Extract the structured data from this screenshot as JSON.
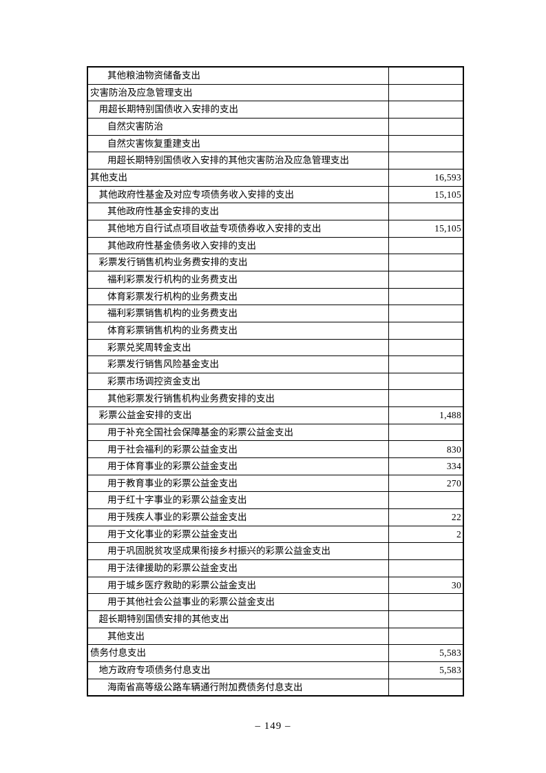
{
  "page": {
    "number_label": "– 149 –",
    "background_color": "#ffffff",
    "text_color": "#000000",
    "border_color": "#000000"
  },
  "table": {
    "rows": [
      {
        "label": "其他粮油物资储备支出",
        "indent": 2,
        "value": ""
      },
      {
        "label": "灾害防治及应急管理支出",
        "indent": 0,
        "value": ""
      },
      {
        "label": "用超长期特别国债收入安排的支出",
        "indent": 1,
        "value": ""
      },
      {
        "label": "自然灾害防治",
        "indent": 2,
        "value": ""
      },
      {
        "label": "自然灾害恢复重建支出",
        "indent": 2,
        "value": ""
      },
      {
        "label": "用超长期特别国债收入安排的其他灾害防治及应急管理支出",
        "indent": 2,
        "value": ""
      },
      {
        "label": "其他支出",
        "indent": 0,
        "value": "16,593"
      },
      {
        "label": "其他政府性基金及对应专项债务收入安排的支出",
        "indent": 1,
        "value": "15,105"
      },
      {
        "label": "其他政府性基金安排的支出",
        "indent": 2,
        "value": ""
      },
      {
        "label": "其他地方自行试点项目收益专项债券收入安排的支出",
        "indent": 2,
        "value": "15,105"
      },
      {
        "label": "其他政府性基金债务收入安排的支出",
        "indent": 2,
        "value": ""
      },
      {
        "label": "彩票发行销售机构业务费安排的支出",
        "indent": 1,
        "value": ""
      },
      {
        "label": "福利彩票发行机构的业务费支出",
        "indent": 2,
        "value": ""
      },
      {
        "label": "体育彩票发行机构的业务费支出",
        "indent": 2,
        "value": ""
      },
      {
        "label": "福利彩票销售机构的业务费支出",
        "indent": 2,
        "value": ""
      },
      {
        "label": "体育彩票销售机构的业务费支出",
        "indent": 2,
        "value": ""
      },
      {
        "label": "彩票兑奖周转金支出",
        "indent": 2,
        "value": ""
      },
      {
        "label": "彩票发行销售风险基金支出",
        "indent": 2,
        "value": ""
      },
      {
        "label": "彩票市场调控资金支出",
        "indent": 2,
        "value": ""
      },
      {
        "label": "其他彩票发行销售机构业务费安排的支出",
        "indent": 2,
        "value": ""
      },
      {
        "label": "彩票公益金安排的支出",
        "indent": 1,
        "value": "1,488"
      },
      {
        "label": "用于补充全国社会保障基金的彩票公益金支出",
        "indent": 2,
        "value": ""
      },
      {
        "label": "用于社会福利的彩票公益金支出",
        "indent": 2,
        "value": "830"
      },
      {
        "label": "用于体育事业的彩票公益金支出",
        "indent": 2,
        "value": "334"
      },
      {
        "label": "用于教育事业的彩票公益金支出",
        "indent": 2,
        "value": "270"
      },
      {
        "label": "用于红十字事业的彩票公益金支出",
        "indent": 2,
        "value": ""
      },
      {
        "label": "用于残疾人事业的彩票公益金支出",
        "indent": 2,
        "value": "22"
      },
      {
        "label": "用于文化事业的彩票公益金支出",
        "indent": 2,
        "value": "2"
      },
      {
        "label": "用于巩固脱贫攻坚成果衔接乡村振兴的彩票公益金支出",
        "indent": 2,
        "value": ""
      },
      {
        "label": "用于法律援助的彩票公益金支出",
        "indent": 2,
        "value": ""
      },
      {
        "label": "用于城乡医疗救助的彩票公益金支出",
        "indent": 2,
        "value": "30"
      },
      {
        "label": "用于其他社会公益事业的彩票公益金支出",
        "indent": 2,
        "value": ""
      },
      {
        "label": "超长期特别国债安排的其他支出",
        "indent": 1,
        "value": ""
      },
      {
        "label": "其他支出",
        "indent": 2,
        "value": ""
      },
      {
        "label": "债务付息支出",
        "indent": 0,
        "value": "5,583"
      },
      {
        "label": "地方政府专项债务付息支出",
        "indent": 1,
        "value": "5,583"
      },
      {
        "label": "海南省高等级公路车辆通行附加费债务付息支出",
        "indent": 2,
        "value": ""
      }
    ]
  }
}
